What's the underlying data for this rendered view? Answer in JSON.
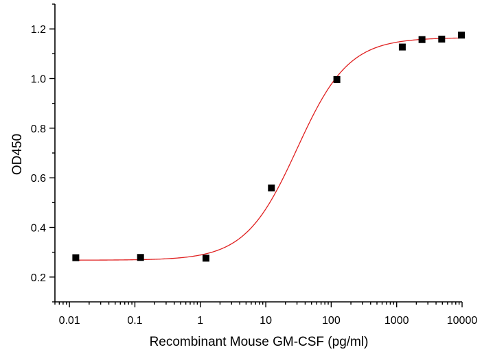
{
  "chart_data": {
    "type": "scatter",
    "title": "",
    "xlabel": "Recombinant Mouse GM-CSF (pg/ml)",
    "ylabel": "OD450",
    "x_scale": "log",
    "xlim": [
      0.006,
      10000
    ],
    "ylim": [
      0.1,
      1.3
    ],
    "grid": false,
    "x_ticks": [
      {
        "value": 0.01,
        "label": "0.01"
      },
      {
        "value": 0.1,
        "label": "0.1"
      },
      {
        "value": 1,
        "label": "1"
      },
      {
        "value": 10,
        "label": "10"
      },
      {
        "value": 100,
        "label": "100"
      },
      {
        "value": 1000,
        "label": "1000"
      },
      {
        "value": 10000,
        "label": "10000"
      }
    ],
    "y_ticks": [
      {
        "value": 0.2,
        "label": "0.2"
      },
      {
        "value": 0.4,
        "label": "0.4"
      },
      {
        "value": 0.6,
        "label": "0.6"
      },
      {
        "value": 0.8,
        "label": "0.8"
      },
      {
        "value": 1.0,
        "label": "1.0"
      },
      {
        "value": 1.2,
        "label": "1.2"
      }
    ],
    "series": [
      {
        "marker": "square",
        "color": "#000000",
        "points": [
          {
            "x": 0.0125,
            "y": 0.278
          },
          {
            "x": 0.122,
            "y": 0.279
          },
          {
            "x": 1.22,
            "y": 0.276
          },
          {
            "x": 12.2,
            "y": 0.559
          },
          {
            "x": 122,
            "y": 0.996
          },
          {
            "x": 1220,
            "y": 1.127
          },
          {
            "x": 2440,
            "y": 1.157
          },
          {
            "x": 4880,
            "y": 1.159
          },
          {
            "x": 9760,
            "y": 1.175
          }
        ]
      }
    ],
    "fit": {
      "type": "4PL",
      "color": "#e02020",
      "bottom": 0.268,
      "top": 1.165,
      "ec50": 30,
      "hill": 1.1,
      "x_range": [
        0.0125,
        9760
      ]
    }
  }
}
